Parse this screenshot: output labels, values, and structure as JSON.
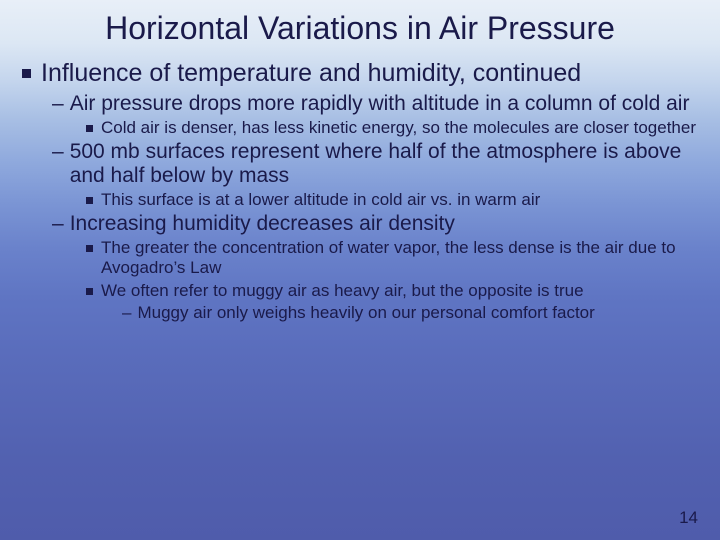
{
  "title": "Horizontal Variations in Air Pressure",
  "page_number": "14",
  "colors": {
    "text": "#1a1a4a",
    "bullet": "#1a1a4a",
    "bg_top": "#e8eff8",
    "bg_bottom": "#4f5cab"
  },
  "typography": {
    "family": "Arial",
    "title_size_pt": 32,
    "lvl1_size_pt": 25,
    "lvl2_size_pt": 21,
    "lvl3_size_pt": 17,
    "lvl4_size_pt": 17
  },
  "bullets": {
    "lvl1_heading": "Influence of temperature and humidity, continued",
    "item1": {
      "text": "Air pressure drops more rapidly with altitude in a column of cold air",
      "sub1": "Cold air is denser, has less kinetic energy, so the molecules are closer together"
    },
    "item2": {
      "text": "500 mb surfaces represent where half of the atmosphere is above and half below by mass",
      "sub1": "This surface is at a lower altitude in cold air vs. in warm air"
    },
    "item3": {
      "text": "Increasing humidity decreases air density",
      "sub1": "The greater the concentration of water vapor, the less dense is the air due to Avogadro’s Law",
      "sub2": "We often refer to muggy air as heavy air, but the opposite is true",
      "sub2_sub1": "Muggy air only weighs heavily on our personal comfort factor"
    }
  }
}
